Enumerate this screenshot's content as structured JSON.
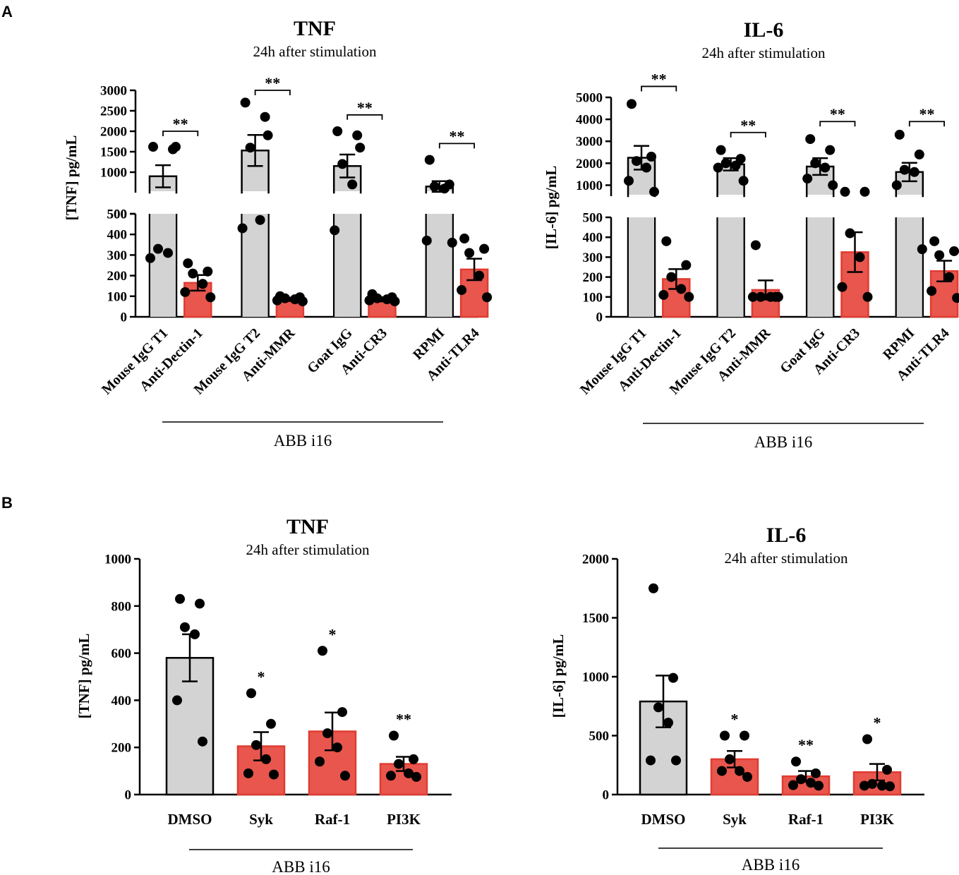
{
  "panel_labels": [
    "A",
    "B"
  ],
  "colors": {
    "control": "#d3d3d3",
    "treated": "#e8564d",
    "treated_edge": "#e03c31",
    "axis": "#000000"
  },
  "chart_data": [
    {
      "id": "A-TNF",
      "type": "bar",
      "title": "TNF",
      "subtitle": "24h after stimulation",
      "ylabel": "[TNF] pg/mL",
      "group_label": "ABB i16",
      "axis_break": true,
      "lower_ylim": [
        0,
        500
      ],
      "lower_ticks": [
        0,
        100,
        200,
        300,
        400,
        500
      ],
      "upper_ylim": [
        500,
        3000
      ],
      "upper_ticks": [
        500,
        1000,
        1500,
        2000,
        2500,
        3000
      ],
      "categories": [
        "Mouse IgG T1",
        "Anti-Dectin-1",
        "Mouse IgG T2",
        "Anti-MMR",
        "Goat IgG",
        "Anti-CR3",
        "RPMI",
        "Anti-TLR4"
      ],
      "groups": [
        "control",
        "treated",
        "control",
        "treated",
        "control",
        "treated",
        "control",
        "treated"
      ],
      "means": [
        900,
        165,
        1530,
        85,
        1150,
        85,
        650,
        230
      ],
      "sem": [
        270,
        38,
        380,
        8,
        280,
        10,
        130,
        52
      ],
      "points": [
        [
          1620,
          1560,
          330,
          310,
          285,
          1620
        ],
        [
          260,
          220,
          210,
          160,
          120,
          95
        ],
        [
          2700,
          2350,
          1600,
          470,
          430,
          1900
        ],
        [
          100,
          95,
          90,
          85,
          80,
          75
        ],
        [
          2000,
          1900,
          1200,
          700,
          420,
          1600
        ],
        [
          110,
          95,
          90,
          85,
          80,
          75
        ],
        [
          1300,
          700,
          650,
          600,
          370,
          360
        ],
        [
          380,
          330,
          310,
          200,
          130,
          95
        ]
      ],
      "significance": [
        {
          "pair": [
            0,
            1
          ],
          "label": "**",
          "y": 2000
        },
        {
          "pair": [
            2,
            3
          ],
          "label": "**",
          "y": 3000
        },
        {
          "pair": [
            4,
            5
          ],
          "label": "**",
          "y": 2400
        },
        {
          "pair": [
            6,
            7
          ],
          "label": "**",
          "y": 1700
        }
      ]
    },
    {
      "id": "A-IL6",
      "type": "bar",
      "title": "IL-6",
      "subtitle": "24h after stimulation",
      "ylabel": "[IL-6] pg/mL",
      "group_label": "ABB i16",
      "axis_break": true,
      "lower_ylim": [
        0,
        500
      ],
      "lower_ticks": [
        0,
        100,
        200,
        300,
        400,
        500
      ],
      "upper_ylim": [
        500,
        5000
      ],
      "upper_ticks": [
        1000,
        2000,
        3000,
        4000,
        5000
      ],
      "categories": [
        "Mouse IgG T1",
        "Anti-Dectin-1",
        "Mouse IgG T2",
        "Anti-MMR",
        "Goat IgG",
        "Anti-CR3",
        "RPMI",
        "Anti-TLR4"
      ],
      "groups": [
        "control",
        "treated",
        "control",
        "treated",
        "control",
        "treated",
        "control",
        "treated"
      ],
      "means": [
        2250,
        190,
        1950,
        135,
        1850,
        325,
        1600,
        230
      ],
      "sem": [
        540,
        50,
        280,
        48,
        380,
        100,
        420,
        52
      ],
      "points": [
        [
          4700,
          2300,
          2100,
          1800,
          1200,
          700
        ],
        [
          380,
          260,
          200,
          140,
          110,
          100
        ],
        [
          2600,
          2200,
          2000,
          1900,
          1800,
          1200
        ],
        [
          360,
          100,
          100,
          100,
          100,
          100
        ],
        [
          3100,
          2600,
          2000,
          1800,
          1300,
          1000
        ],
        [
          700,
          700,
          420,
          300,
          150,
          100
        ],
        [
          3300,
          2400,
          1700,
          1600,
          1000,
          340
        ],
        [
          380,
          330,
          310,
          200,
          130,
          95
        ]
      ],
      "significance": [
        {
          "pair": [
            0,
            1
          ],
          "label": "**",
          "y": 5500
        },
        {
          "pair": [
            2,
            3
          ],
          "label": "**",
          "y": 3400
        },
        {
          "pair": [
            4,
            5
          ],
          "label": "**",
          "y": 3900
        },
        {
          "pair": [
            6,
            7
          ],
          "label": "**",
          "y": 3900
        }
      ]
    },
    {
      "id": "B-TNF",
      "type": "bar",
      "title": "TNF",
      "subtitle": "24h after stimulation",
      "ylabel": "[TNF] pg/mL",
      "group_label": "ABB i16",
      "axis_break": false,
      "ylim": [
        0,
        1000
      ],
      "ticks": [
        0,
        200,
        400,
        600,
        800,
        1000
      ],
      "categories": [
        "DMSO",
        "Syk",
        "Raf-1",
        "PI3K"
      ],
      "groups": [
        "control",
        "treated",
        "treated",
        "treated"
      ],
      "means": [
        580,
        205,
        268,
        130
      ],
      "sem": [
        100,
        60,
        80,
        30
      ],
      "points": [
        [
          830,
          810,
          710,
          680,
          400,
          225
        ],
        [
          430,
          300,
          210,
          150,
          90,
          85
        ],
        [
          610,
          350,
          260,
          200,
          140,
          80
        ],
        [
          250,
          150,
          130,
          90,
          80,
          75
        ]
      ],
      "star_labels": [
        "",
        "*",
        "*",
        "**"
      ]
    },
    {
      "id": "B-IL6",
      "type": "bar",
      "title": "IL-6",
      "subtitle": "24h after stimulation",
      "ylabel": "[IL-6] pg/mL",
      "group_label": "ABB i16",
      "axis_break": false,
      "ylim": [
        0,
        2000
      ],
      "ticks": [
        0,
        500,
        1000,
        1500,
        2000
      ],
      "categories": [
        "DMSO",
        "Syk",
        "Raf-1",
        "PI3K"
      ],
      "groups": [
        "control",
        "treated",
        "treated",
        "treated"
      ],
      "means": [
        790,
        300,
        155,
        190
      ],
      "sem": [
        220,
        70,
        45,
        70
      ],
      "points": [
        [
          1750,
          990,
          740,
          610,
          290,
          290
        ],
        [
          500,
          500,
          300,
          200,
          200,
          150
        ],
        [
          280,
          180,
          130,
          100,
          80,
          75
        ],
        [
          470,
          210,
          90,
          75,
          75,
          70
        ]
      ],
      "star_labels": [
        "",
        "*",
        "**",
        "*"
      ]
    }
  ]
}
